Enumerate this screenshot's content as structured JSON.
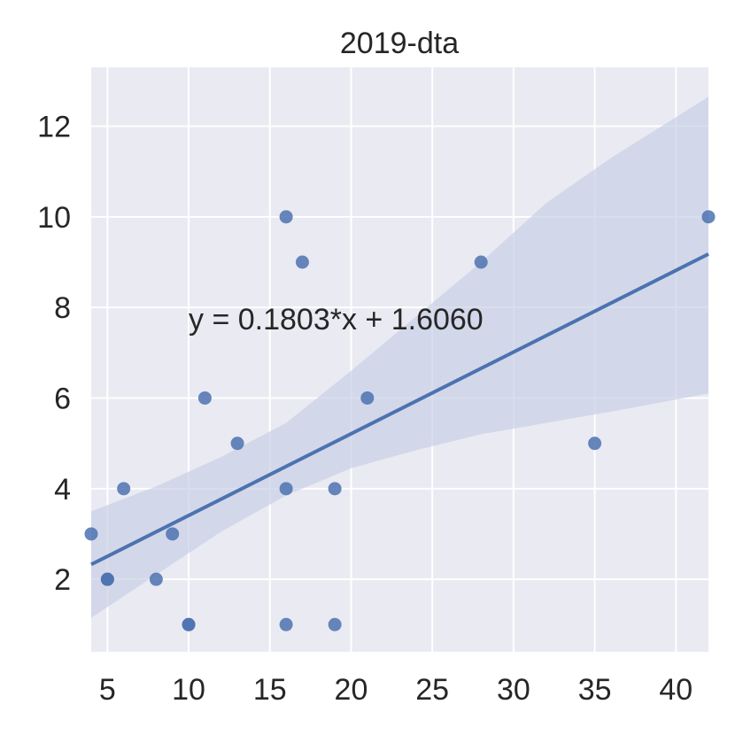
{
  "chart_data": {
    "type": "scatter",
    "title": "2019-dta",
    "xlabel": "",
    "ylabel": "",
    "xlim": [
      4,
      42
    ],
    "ylim": [
      0.4,
      13.3
    ],
    "xticks": [
      5,
      10,
      15,
      20,
      25,
      30,
      35,
      40
    ],
    "yticks": [
      2,
      4,
      6,
      8,
      10,
      12
    ],
    "grid": true,
    "points": [
      {
        "x": 4,
        "y": 3
      },
      {
        "x": 5,
        "y": 2
      },
      {
        "x": 5,
        "y": 2
      },
      {
        "x": 6,
        "y": 4
      },
      {
        "x": 8,
        "y": 2
      },
      {
        "x": 9,
        "y": 3
      },
      {
        "x": 10,
        "y": 1
      },
      {
        "x": 10,
        "y": 1
      },
      {
        "x": 11,
        "y": 6
      },
      {
        "x": 13,
        "y": 5
      },
      {
        "x": 16,
        "y": 10
      },
      {
        "x": 16,
        "y": 4
      },
      {
        "x": 16,
        "y": 1
      },
      {
        "x": 17,
        "y": 9
      },
      {
        "x": 19,
        "y": 4
      },
      {
        "x": 19,
        "y": 1
      },
      {
        "x": 21,
        "y": 6
      },
      {
        "x": 28,
        "y": 9
      },
      {
        "x": 35,
        "y": 5
      },
      {
        "x": 42,
        "y": 10
      }
    ],
    "regression": {
      "slope": 0.1803,
      "intercept": 1.606
    },
    "confidence_band": [
      {
        "x": 4,
        "lower": 1.15,
        "upper": 3.5
      },
      {
        "x": 8,
        "lower": 2.1,
        "upper": 4.05
      },
      {
        "x": 12,
        "lower": 3.05,
        "upper": 4.7
      },
      {
        "x": 16,
        "lower": 3.85,
        "upper": 5.45
      },
      {
        "x": 20,
        "lower": 4.45,
        "upper": 6.6
      },
      {
        "x": 24,
        "lower": 4.85,
        "upper": 7.8
      },
      {
        "x": 28,
        "lower": 5.2,
        "upper": 9.0
      },
      {
        "x": 32,
        "lower": 5.45,
        "upper": 10.3
      },
      {
        "x": 36,
        "lower": 5.7,
        "upper": 11.3
      },
      {
        "x": 42,
        "lower": 6.1,
        "upper": 12.65
      }
    ],
    "annotation": "y = 0.1803*x + 1.6060",
    "colors": {
      "background": "#eaeaf2",
      "grid": "#ffffff",
      "points": "#4c72b0",
      "line": "#4c72b0",
      "band": "#c8d0e6"
    }
  }
}
